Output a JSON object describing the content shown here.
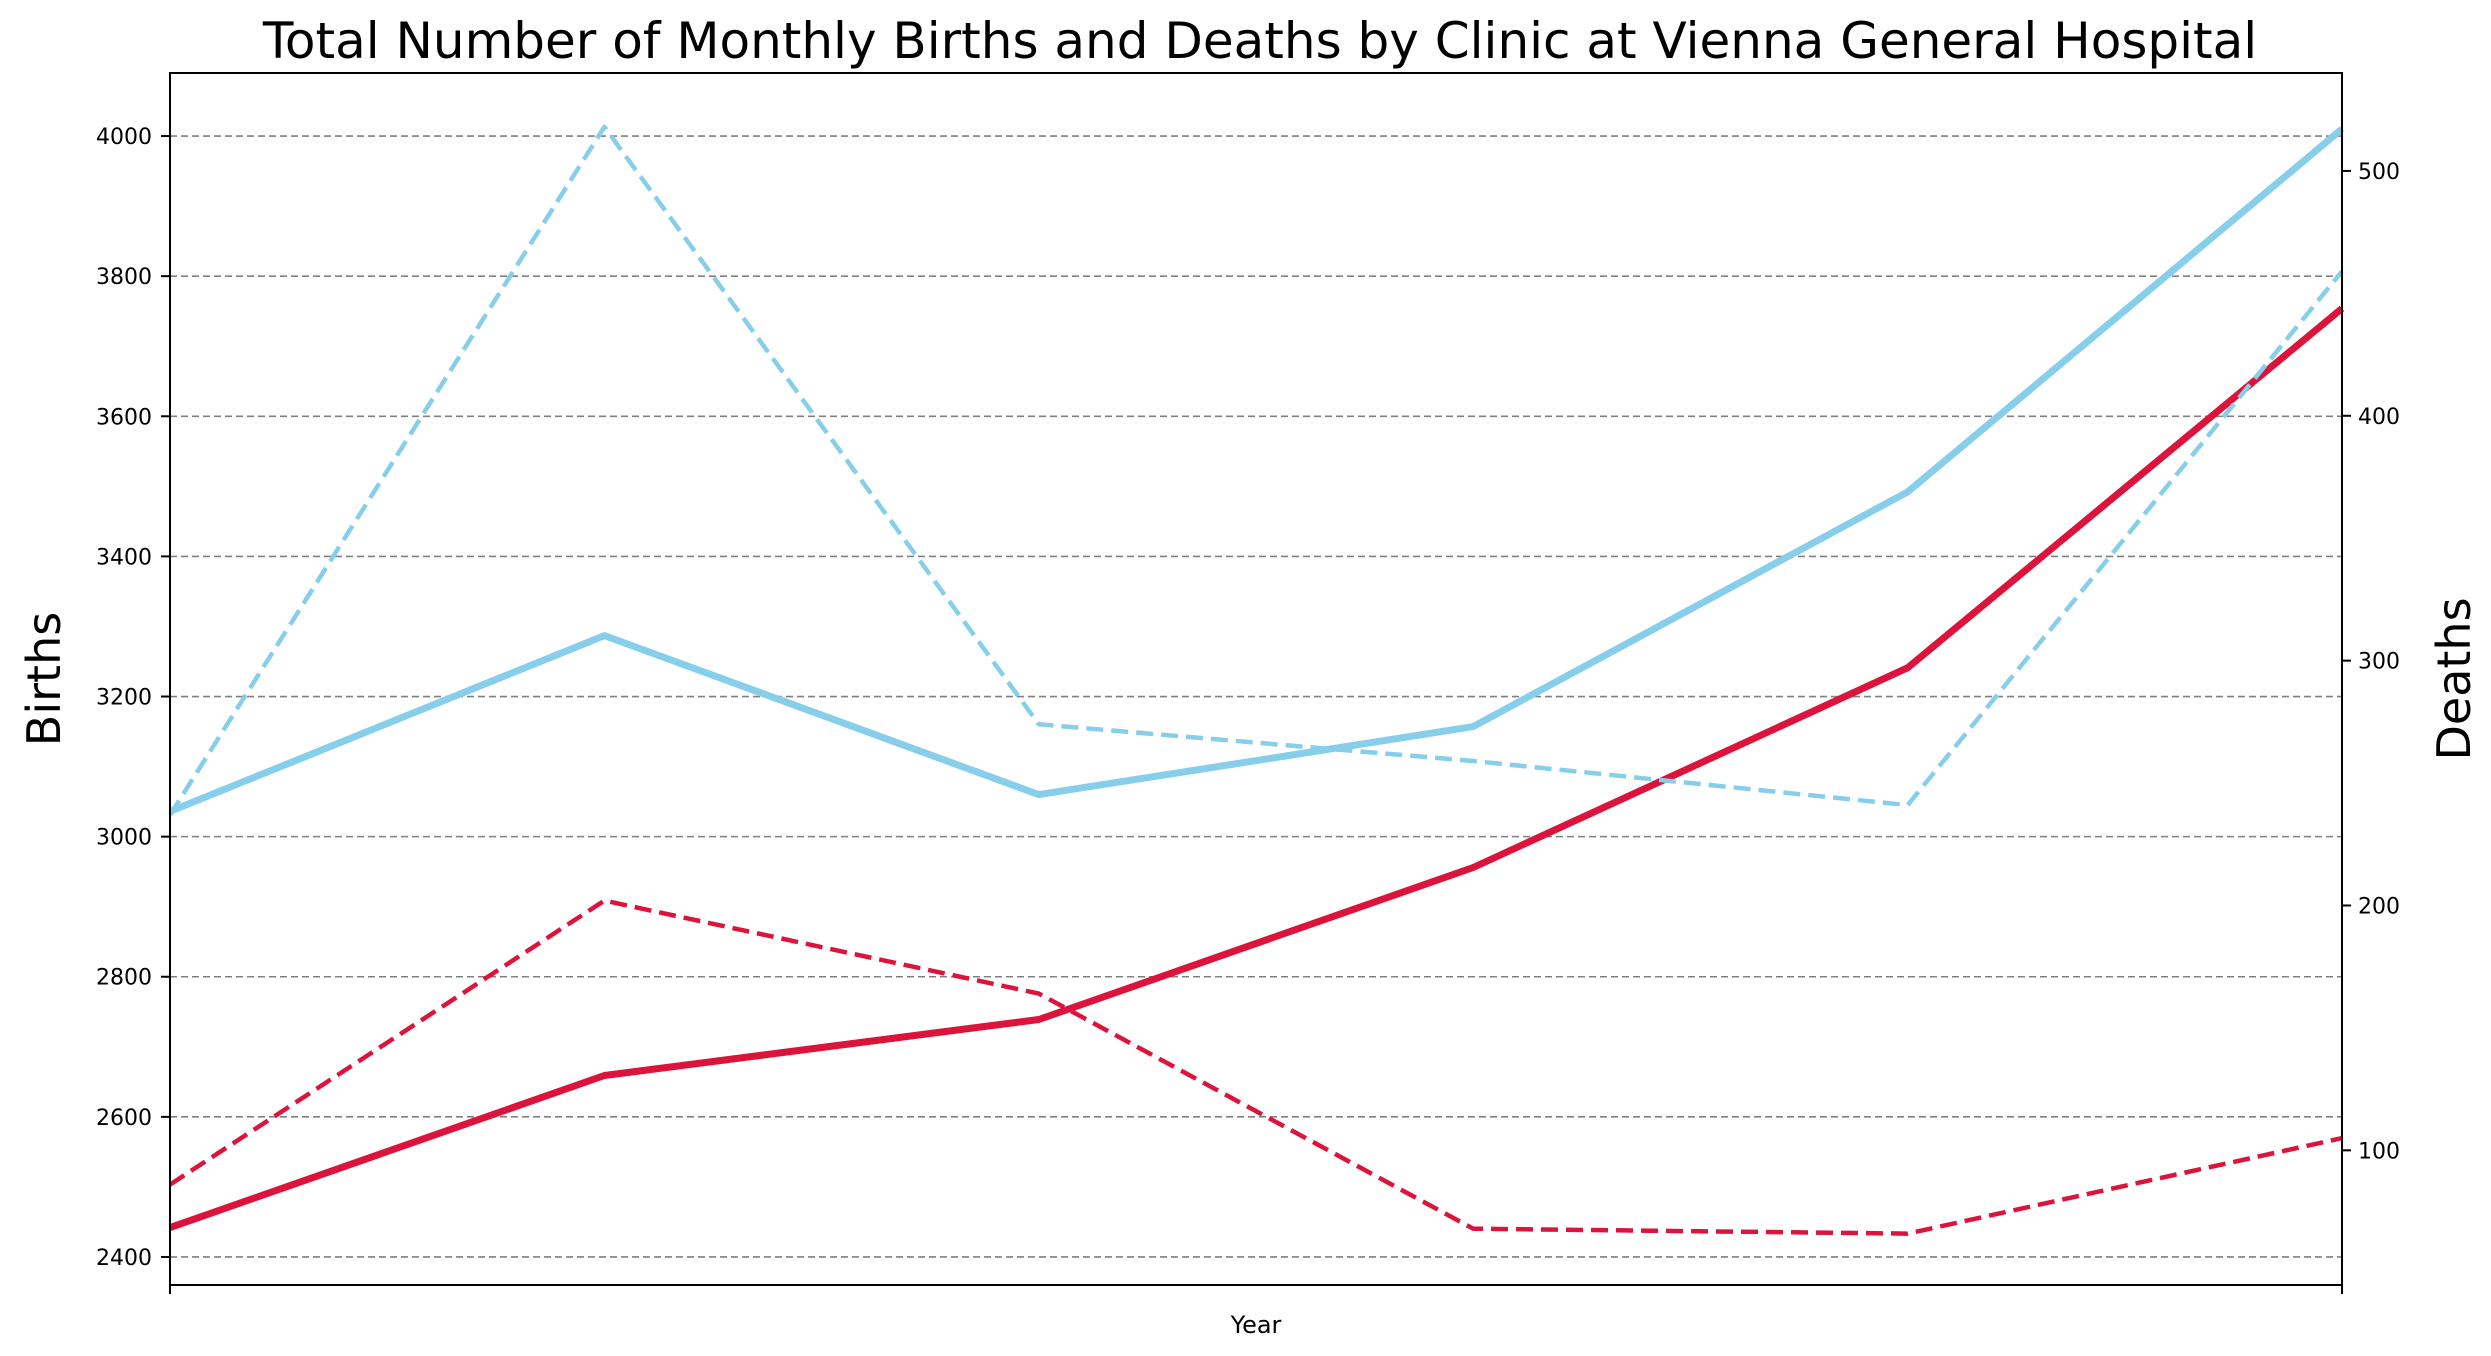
{
  "chart_data": {
    "type": "line",
    "title": "Total Number of Monthly Births and Deaths by Clinic at Vienna General Hospital",
    "xlabel": "Year",
    "ylabel_left": "Births",
    "ylabel_right": "Deaths",
    "x": [
      0,
      1,
      2,
      3,
      4,
      5
    ],
    "xlim": [
      0,
      5
    ],
    "ylim_left": [
      2360,
      4090
    ],
    "ylim_right": [
      45,
      540
    ],
    "yticks_left": [
      2400,
      2600,
      2800,
      3000,
      3200,
      3400,
      3600,
      3800,
      4000
    ],
    "yticks_right": [
      100,
      200,
      300,
      400,
      500
    ],
    "grid": true,
    "series": [
      {
        "axis": "left",
        "style": "solid",
        "color": "#87CEEB",
        "values": [
          3036,
          3287,
          3060,
          3157,
          3492,
          4010
        ]
      },
      {
        "axis": "left",
        "style": "solid",
        "color": "#DC143C",
        "values": [
          2442,
          2659,
          2739,
          2956,
          3241,
          3754
        ]
      },
      {
        "axis": "right",
        "style": "dashed",
        "color": "#87CEEB",
        "values": [
          237,
          518,
          274,
          259,
          241,
          459
        ]
      },
      {
        "axis": "right",
        "style": "dashed",
        "color": "#DC143C",
        "values": [
          86,
          202,
          164,
          68,
          66,
          105
        ]
      }
    ]
  }
}
